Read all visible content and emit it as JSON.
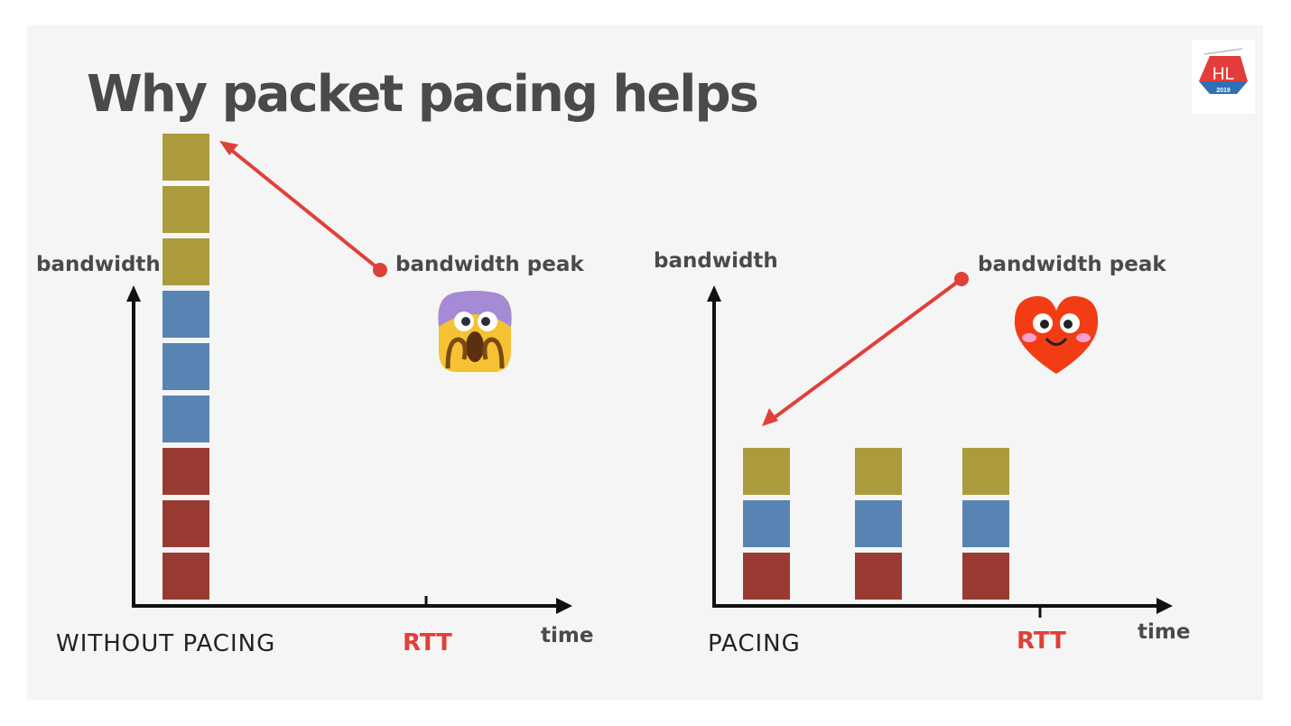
{
  "slide": {
    "title": "Why packet pacing helps",
    "logo_text": "HL",
    "logo_year": "2019"
  },
  "left_panel": {
    "caption": "WITHOUT PACING",
    "y_axis_label": "bandwidth",
    "x_axis_label": "time",
    "tick_label": "RTT",
    "annotation": "bandwidth peak",
    "emoji": "screaming-face"
  },
  "right_panel": {
    "caption": "PACING",
    "y_axis_label": "bandwidth",
    "x_axis_label": "time",
    "tick_label": "RTT",
    "annotation": "bandwidth peak",
    "emoji": "smiling-heart"
  },
  "colors": {
    "red_packet": "#9a3b33",
    "blue_packet": "#5884b4",
    "olive_packet": "#ab9b3c",
    "arrow_red": "#e04038",
    "axis": "#111111",
    "rtt": "#e04038"
  },
  "chart_data": [
    {
      "type": "bar",
      "title": "WITHOUT PACING",
      "xlabel": "time",
      "ylabel": "bandwidth",
      "xticks": [
        "RTT"
      ],
      "stacks": [
        [
          "red",
          "red",
          "red",
          "blue",
          "blue",
          "blue",
          "olive",
          "olive",
          "olive"
        ]
      ],
      "annotation": "bandwidth peak"
    },
    {
      "type": "bar",
      "title": "PACING",
      "xlabel": "time",
      "ylabel": "bandwidth",
      "xticks": [
        "RTT"
      ],
      "stacks": [
        [
          "red",
          "blue",
          "olive"
        ],
        [
          "red",
          "blue",
          "olive"
        ],
        [
          "red",
          "blue",
          "olive"
        ]
      ],
      "annotation": "bandwidth peak"
    }
  ]
}
